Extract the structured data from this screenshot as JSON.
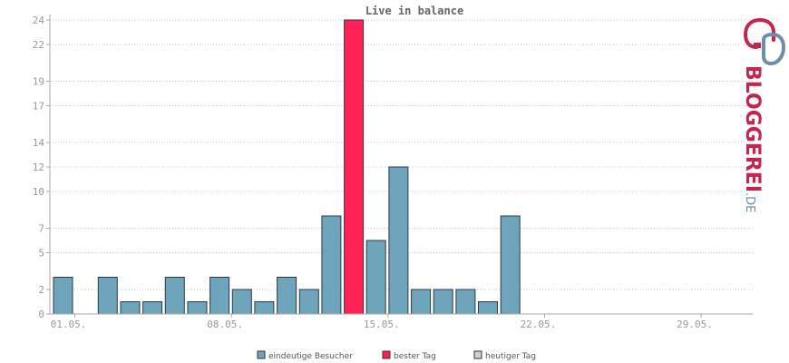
{
  "chart_data": {
    "type": "bar",
    "title": "Live in balance",
    "categories": [
      "01.05.",
      "02.05.",
      "03.05.",
      "04.05.",
      "05.05.",
      "06.05.",
      "07.05.",
      "08.05.",
      "09.05.",
      "10.05.",
      "11.05.",
      "12.05.",
      "13.05.",
      "14.05.",
      "15.05.",
      "16.05.",
      "17.05.",
      "18.05.",
      "19.05.",
      "20.05.",
      "21.05.",
      "22.05.",
      "23.05.",
      "24.05.",
      "25.05.",
      "26.05.",
      "27.05.",
      "28.05.",
      "29.05.",
      "30.05.",
      "31.05."
    ],
    "xticks": [
      "01.05.",
      "08.05.",
      "15.05.",
      "22.05.",
      "29.05."
    ],
    "yticks": [
      0,
      2,
      5,
      7,
      10,
      12,
      14,
      17,
      19,
      22,
      24
    ],
    "ylim": [
      0,
      24
    ],
    "series": [
      {
        "name": "eindeutige Besucher",
        "color": "#6ea5bd",
        "best_color": "#ff2255",
        "values": [
          3,
          0,
          3,
          1,
          1,
          3,
          1,
          3,
          2,
          1,
          3,
          2,
          8,
          24,
          6,
          12,
          2,
          2,
          2,
          1,
          8,
          0,
          0,
          0,
          0,
          0,
          0,
          0,
          0,
          0,
          0
        ],
        "best_index": 13
      }
    ],
    "grid": true,
    "legend_position": "bottom"
  },
  "legend": {
    "items": [
      {
        "label": "eindeutige Besucher",
        "color": "#6ea5bd"
      },
      {
        "label": "bester Tag",
        "color": "#ff2255"
      },
      {
        "label": "heutiger Tag",
        "color": "#d0d0d0"
      }
    ]
  },
  "logo": {
    "text": "BLOGGEREI",
    "suffix": ".DE",
    "color_main": "#c7234f",
    "color_blue": "#6d8ea8"
  }
}
